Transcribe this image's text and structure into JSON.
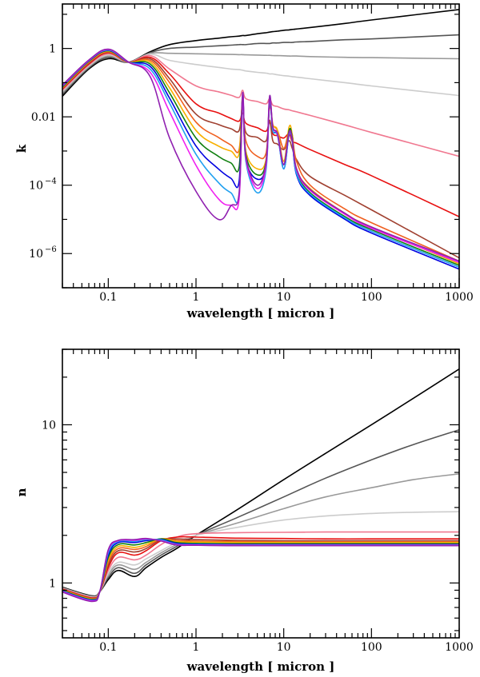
{
  "chart_data": [
    {
      "type": "line",
      "xlabel": "wavelength [ micron ]",
      "ylabel": "k",
      "xscale": "log",
      "yscale": "log",
      "xlim": [
        0.03,
        1000
      ],
      "ylim": [
        1e-07,
        20
      ],
      "grid": false,
      "x_ticks": [
        {
          "v": 0.1,
          "label": "0.1"
        },
        {
          "v": 1,
          "label": "1"
        },
        {
          "v": 10,
          "label": "10"
        },
        {
          "v": 100,
          "label": "100"
        },
        {
          "v": 1000,
          "label": "1000"
        }
      ],
      "y_ticks": [
        {
          "v": 1,
          "label": "1"
        },
        {
          "v": 0.01,
          "label": "0.01"
        },
        {
          "v": 0.0001,
          "label": "10",
          "exp": "−4"
        },
        {
          "v": 1e-06,
          "label": "10",
          "exp": "−6"
        }
      ],
      "x": [
        0.03,
        0.06,
        0.1,
        0.17,
        0.3,
        0.5,
        1,
        1.8,
        2.5,
        3.1,
        3.4,
        3.7,
        5,
        6.3,
        6.9,
        7.5,
        8.5,
        10,
        11.5,
        12.5,
        14,
        20,
        50,
        100,
        1000
      ],
      "series": [
        {
          "color": "#000000",
          "values": [
            0.04,
            0.25,
            0.5,
            0.4,
            0.8,
            1.3,
            1.7,
            2.0,
            2.2,
            2.3,
            2.4,
            2.4,
            2.7,
            2.9,
            3.0,
            3.1,
            3.2,
            3.4,
            3.5,
            3.6,
            3.7,
            4.1,
            5.4,
            6.8,
            13.8
          ]
        },
        {
          "color": "#555555",
          "values": [
            0.045,
            0.27,
            0.55,
            0.4,
            0.75,
            1.0,
            1.1,
            1.2,
            1.25,
            1.3,
            1.3,
            1.3,
            1.4,
            1.4,
            1.4,
            1.45,
            1.45,
            1.5,
            1.5,
            1.5,
            1.55,
            1.6,
            1.8,
            1.9,
            2.5
          ]
        },
        {
          "color": "#999999",
          "values": [
            0.05,
            0.29,
            0.6,
            0.4,
            0.72,
            0.72,
            0.7,
            0.68,
            0.67,
            0.66,
            0.66,
            0.65,
            0.64,
            0.63,
            0.63,
            0.62,
            0.62,
            0.61,
            0.6,
            0.6,
            0.6,
            0.58,
            0.55,
            0.54,
            0.5
          ]
        },
        {
          "color": "#cccccc",
          "values": [
            0.055,
            0.31,
            0.65,
            0.4,
            0.68,
            0.45,
            0.34,
            0.28,
            0.25,
            0.24,
            0.23,
            0.22,
            0.2,
            0.19,
            0.18,
            0.18,
            0.17,
            0.16,
            0.155,
            0.15,
            0.145,
            0.13,
            0.1,
            0.08,
            0.042
          ]
        },
        {
          "color": "#f07890",
          "values": [
            0.06,
            0.33,
            0.7,
            0.4,
            0.62,
            0.25,
            0.08,
            0.054,
            0.043,
            0.037,
            0.06,
            0.034,
            0.028,
            0.024,
            0.034,
            0.022,
            0.02,
            0.017,
            0.016,
            0.015,
            0.014,
            0.011,
            0.0058,
            0.0035,
            0.0007
          ]
        },
        {
          "color": "#e81010",
          "values": [
            0.065,
            0.35,
            0.75,
            0.4,
            0.55,
            0.18,
            0.024,
            0.013,
            0.009,
            0.0075,
            0.013,
            0.0065,
            0.0048,
            0.0038,
            0.007,
            0.0032,
            0.0028,
            0.0024,
            0.0032,
            0.0019,
            0.0017,
            0.0011,
            0.0004,
            0.00019,
            1.2e-05
          ]
        },
        {
          "color": "#a04030",
          "values": [
            0.068,
            0.37,
            0.78,
            0.4,
            0.5,
            0.13,
            0.012,
            0.006,
            0.0045,
            0.004,
            0.02,
            0.0035,
            0.0025,
            0.002,
            0.008,
            0.002,
            0.0016,
            0.0011,
            0.002,
            0.0012,
            0.00056,
            0.00018,
            5e-05,
            1.9e-05,
            7.5e-07
          ]
        },
        {
          "color": "#f06020",
          "values": [
            0.07,
            0.39,
            0.8,
            0.4,
            0.45,
            0.1,
            0.007,
            0.0025,
            0.0015,
            0.0011,
            0.03,
            0.002,
            0.0007,
            0.0009,
            0.02,
            0.006,
            0.004,
            0.0012,
            0.004,
            0.003,
            0.0005,
            0.0001,
            2e-05,
            8e-06,
            6e-07
          ]
        },
        {
          "color": "#f8b000",
          "values": [
            0.072,
            0.41,
            0.83,
            0.4,
            0.4,
            0.07,
            0.004,
            0.0014,
            0.001,
            0.00085,
            0.04,
            0.001,
            0.0003,
            0.0006,
            0.03,
            0.006,
            0.004,
            0.0005,
            0.005,
            0.003,
            0.0003,
            8e-05,
            1.5e-05,
            6e-06,
            5e-07
          ]
        },
        {
          "color": "#108010",
          "values": [
            0.075,
            0.42,
            0.86,
            0.4,
            0.35,
            0.05,
            0.0024,
            0.0007,
            0.00045,
            0.00034,
            0.04,
            0.0008,
            0.0002,
            0.0005,
            0.03,
            0.005,
            0.003,
            0.0004,
            0.004,
            0.0025,
            0.00025,
            6e-05,
            1.2e-05,
            5e-06,
            4.5e-07
          ]
        },
        {
          "color": "#0000e0",
          "values": [
            0.078,
            0.43,
            0.88,
            0.4,
            0.3,
            0.035,
            0.0014,
            0.0003,
            0.00016,
            0.00013,
            0.04,
            0.0006,
            0.00015,
            0.0004,
            0.03,
            0.004,
            0.003,
            0.0003,
            0.003,
            0.002,
            0.0002,
            5e-05,
            1e-05,
            4e-06,
            3.5e-07
          ]
        },
        {
          "color": "#20a0f0",
          "values": [
            0.08,
            0.44,
            0.9,
            0.4,
            0.25,
            0.025,
            0.0008,
            0.00012,
            6e-05,
            5e-05,
            0.04,
            0.0005,
            6e-05,
            0.0003,
            0.03,
            0.004,
            0.0028,
            0.0003,
            0.003,
            0.002,
            0.00022,
            5.5e-05,
            1.1e-05,
            4.5e-06,
            4e-07
          ]
        },
        {
          "color": "#f020f0",
          "values": [
            0.082,
            0.45,
            0.93,
            0.4,
            0.2,
            0.014,
            0.00038,
            4e-05,
            2.6e-05,
            4e-05,
            0.045,
            0.0006,
            8e-05,
            0.0004,
            0.035,
            0.005,
            0.003,
            0.0004,
            0.0035,
            0.0022,
            0.00028,
            7e-05,
            1.4e-05,
            5.5e-06,
            5.5e-07
          ]
        },
        {
          "color": "#9020b0",
          "values": [
            0.085,
            0.46,
            0.95,
            0.4,
            0.15,
            0.0024,
            6.6e-05,
            1e-05,
            2.5e-05,
            6e-05,
            0.05,
            0.0007,
            0.0001,
            0.0005,
            0.04,
            0.005,
            0.0032,
            0.0004,
            0.0035,
            0.0022,
            0.0003,
            7.5e-05,
            1.5e-05,
            6e-06,
            6e-07
          ]
        }
      ]
    },
    {
      "type": "line",
      "xlabel": "wavelength [ micron ]",
      "ylabel": "n",
      "xscale": "log",
      "yscale": "log",
      "xlim": [
        0.03,
        1000
      ],
      "ylim": [
        0.45,
        30
      ],
      "grid": false,
      "x_ticks": [
        {
          "v": 0.1,
          "label": "0.1"
        },
        {
          "v": 1,
          "label": "1"
        },
        {
          "v": 10,
          "label": "10"
        },
        {
          "v": 100,
          "label": "100"
        },
        {
          "v": 1000,
          "label": "1000"
        }
      ],
      "y_ticks": [
        {
          "v": 1,
          "label": "1"
        },
        {
          "v": 10,
          "label": "10"
        }
      ],
      "x": [
        0.03,
        0.065,
        0.08,
        0.1,
        0.13,
        0.2,
        0.27,
        0.4,
        0.6,
        1,
        3,
        10,
        30,
        100,
        300,
        1000
      ],
      "series": [
        {
          "color": "#000000",
          "values": [
            0.94,
            0.83,
            0.88,
            1.05,
            1.2,
            1.1,
            1.25,
            1.45,
            1.65,
            2.0,
            2.92,
            4.5,
            6.6,
            10,
            14.7,
            22.5
          ]
        },
        {
          "color": "#555555",
          "values": [
            0.935,
            0.825,
            0.88,
            1.08,
            1.25,
            1.15,
            1.3,
            1.5,
            1.7,
            2.0,
            2.6,
            3.5,
            4.6,
            6.0,
            7.5,
            9.3
          ]
        },
        {
          "color": "#999999",
          "values": [
            0.93,
            0.82,
            0.88,
            1.12,
            1.3,
            1.22,
            1.35,
            1.55,
            1.75,
            2.0,
            2.4,
            2.95,
            3.5,
            4.0,
            4.5,
            4.9
          ]
        },
        {
          "color": "#cccccc",
          "values": [
            0.925,
            0.815,
            0.88,
            1.15,
            1.35,
            1.3,
            1.42,
            1.6,
            1.8,
            2.0,
            2.25,
            2.5,
            2.65,
            2.75,
            2.8,
            2.82
          ]
        },
        {
          "color": "#f07890",
          "values": [
            0.92,
            0.81,
            0.88,
            1.2,
            1.45,
            1.4,
            1.5,
            1.75,
            1.95,
            2.05,
            2.08,
            2.09,
            2.1,
            2.1,
            2.1,
            2.1
          ]
        },
        {
          "color": "#e81010",
          "values": [
            0.915,
            0.805,
            0.88,
            1.25,
            1.55,
            1.5,
            1.6,
            1.85,
            1.95,
            1.95,
            1.92,
            1.91,
            1.9,
            1.9,
            1.9,
            1.9
          ]
        },
        {
          "color": "#a04030",
          "values": [
            0.91,
            0.8,
            0.88,
            1.3,
            1.6,
            1.57,
            1.65,
            1.88,
            1.9,
            1.88,
            1.86,
            1.85,
            1.85,
            1.85,
            1.85,
            1.85
          ]
        },
        {
          "color": "#f06020",
          "values": [
            0.905,
            0.795,
            0.88,
            1.35,
            1.65,
            1.63,
            1.7,
            1.9,
            1.86,
            1.84,
            1.83,
            1.82,
            1.82,
            1.82,
            1.82,
            1.82
          ]
        },
        {
          "color": "#f8b000",
          "values": [
            0.9,
            0.79,
            0.88,
            1.4,
            1.7,
            1.68,
            1.75,
            1.9,
            1.83,
            1.81,
            1.8,
            1.8,
            1.8,
            1.8,
            1.8,
            1.8
          ]
        },
        {
          "color": "#108010",
          "values": [
            0.895,
            0.785,
            0.88,
            1.45,
            1.75,
            1.74,
            1.8,
            1.9,
            1.8,
            1.78,
            1.77,
            1.77,
            1.77,
            1.77,
            1.77,
            1.77
          ]
        },
        {
          "color": "#0000e0",
          "values": [
            0.89,
            0.78,
            0.88,
            1.5,
            1.8,
            1.8,
            1.85,
            1.88,
            1.78,
            1.76,
            1.75,
            1.75,
            1.75,
            1.75,
            1.75,
            1.75
          ]
        },
        {
          "color": "#20a0f0",
          "values": [
            0.885,
            0.775,
            0.88,
            1.55,
            1.83,
            1.83,
            1.88,
            1.87,
            1.76,
            1.75,
            1.74,
            1.74,
            1.74,
            1.74,
            1.74,
            1.74
          ]
        },
        {
          "color": "#f020f0",
          "values": [
            0.88,
            0.77,
            0.88,
            1.6,
            1.85,
            1.86,
            1.9,
            1.85,
            1.75,
            1.74,
            1.73,
            1.73,
            1.73,
            1.73,
            1.73,
            1.73
          ]
        },
        {
          "color": "#9020b0",
          "values": [
            0.875,
            0.765,
            0.88,
            1.62,
            1.86,
            1.88,
            1.91,
            1.84,
            1.74,
            1.73,
            1.72,
            1.72,
            1.72,
            1.72,
            1.72,
            1.72
          ]
        }
      ]
    }
  ]
}
